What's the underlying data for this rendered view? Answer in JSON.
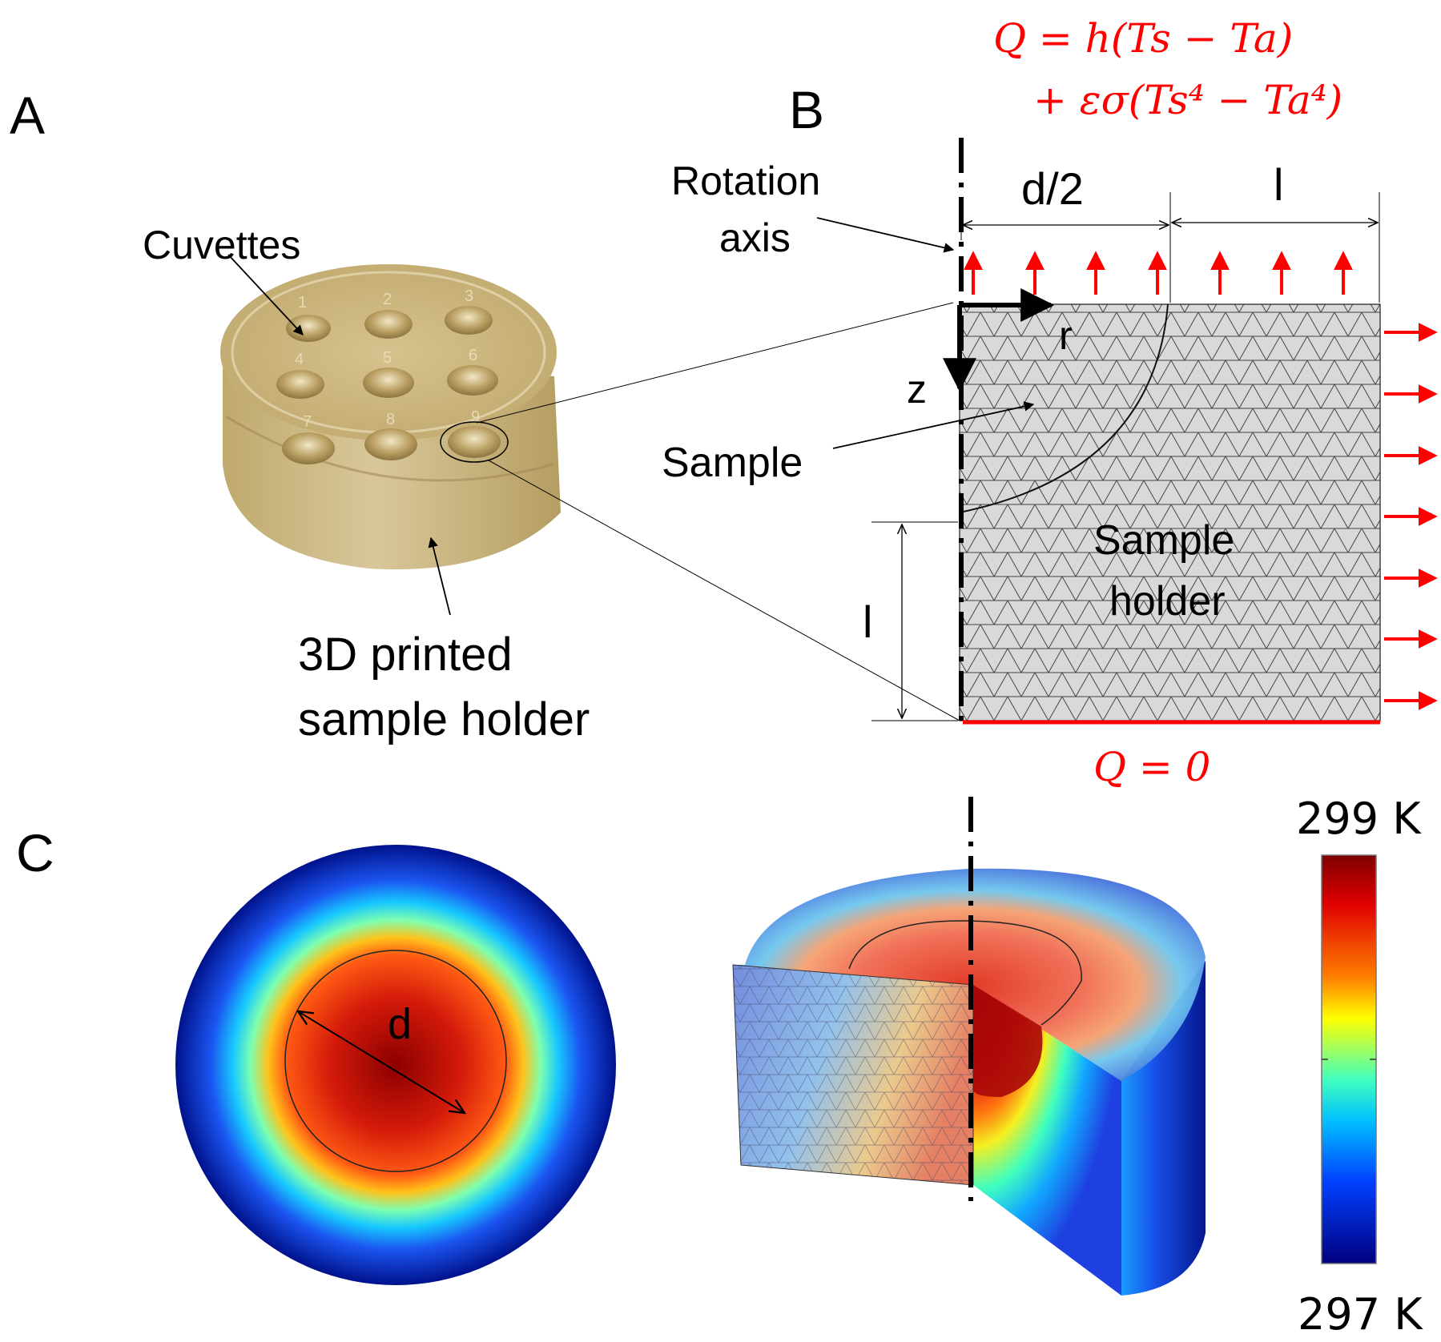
{
  "panels": {
    "a": "A",
    "b": "B",
    "c": "C"
  },
  "panel_a": {
    "cuvettes_label": "Cuvettes",
    "holder_label_line1": "3D printed",
    "holder_label_line2": "sample holder",
    "cuvette_numbers": [
      "1",
      "2",
      "3",
      "4",
      "5",
      "6",
      "7",
      "8",
      "9"
    ]
  },
  "panel_b": {
    "rotation_axis_line1": "Rotation",
    "rotation_axis_line2": "axis",
    "dim_half_diameter": "d/2",
    "dim_l_top": "l",
    "dim_l_left": "l",
    "axis_r": "r",
    "axis_z": "z",
    "sample_label": "Sample",
    "holder_label_line1": "Sample",
    "holder_label_line2": "holder",
    "bc_top_line1": "Q = h(Ts − Ta)",
    "bc_top_line2": "+ εσ(Ts⁴ − Ta⁴)",
    "bc_bottom": "Q = 0"
  },
  "panel_c": {
    "diameter_label": "d",
    "colorbar_max": "299 K",
    "colorbar_min": "297 K"
  },
  "colors": {
    "boundary": "#ff0000",
    "mesh_fill": "#d9d9d9",
    "holder_photo": "#c9b37a"
  }
}
